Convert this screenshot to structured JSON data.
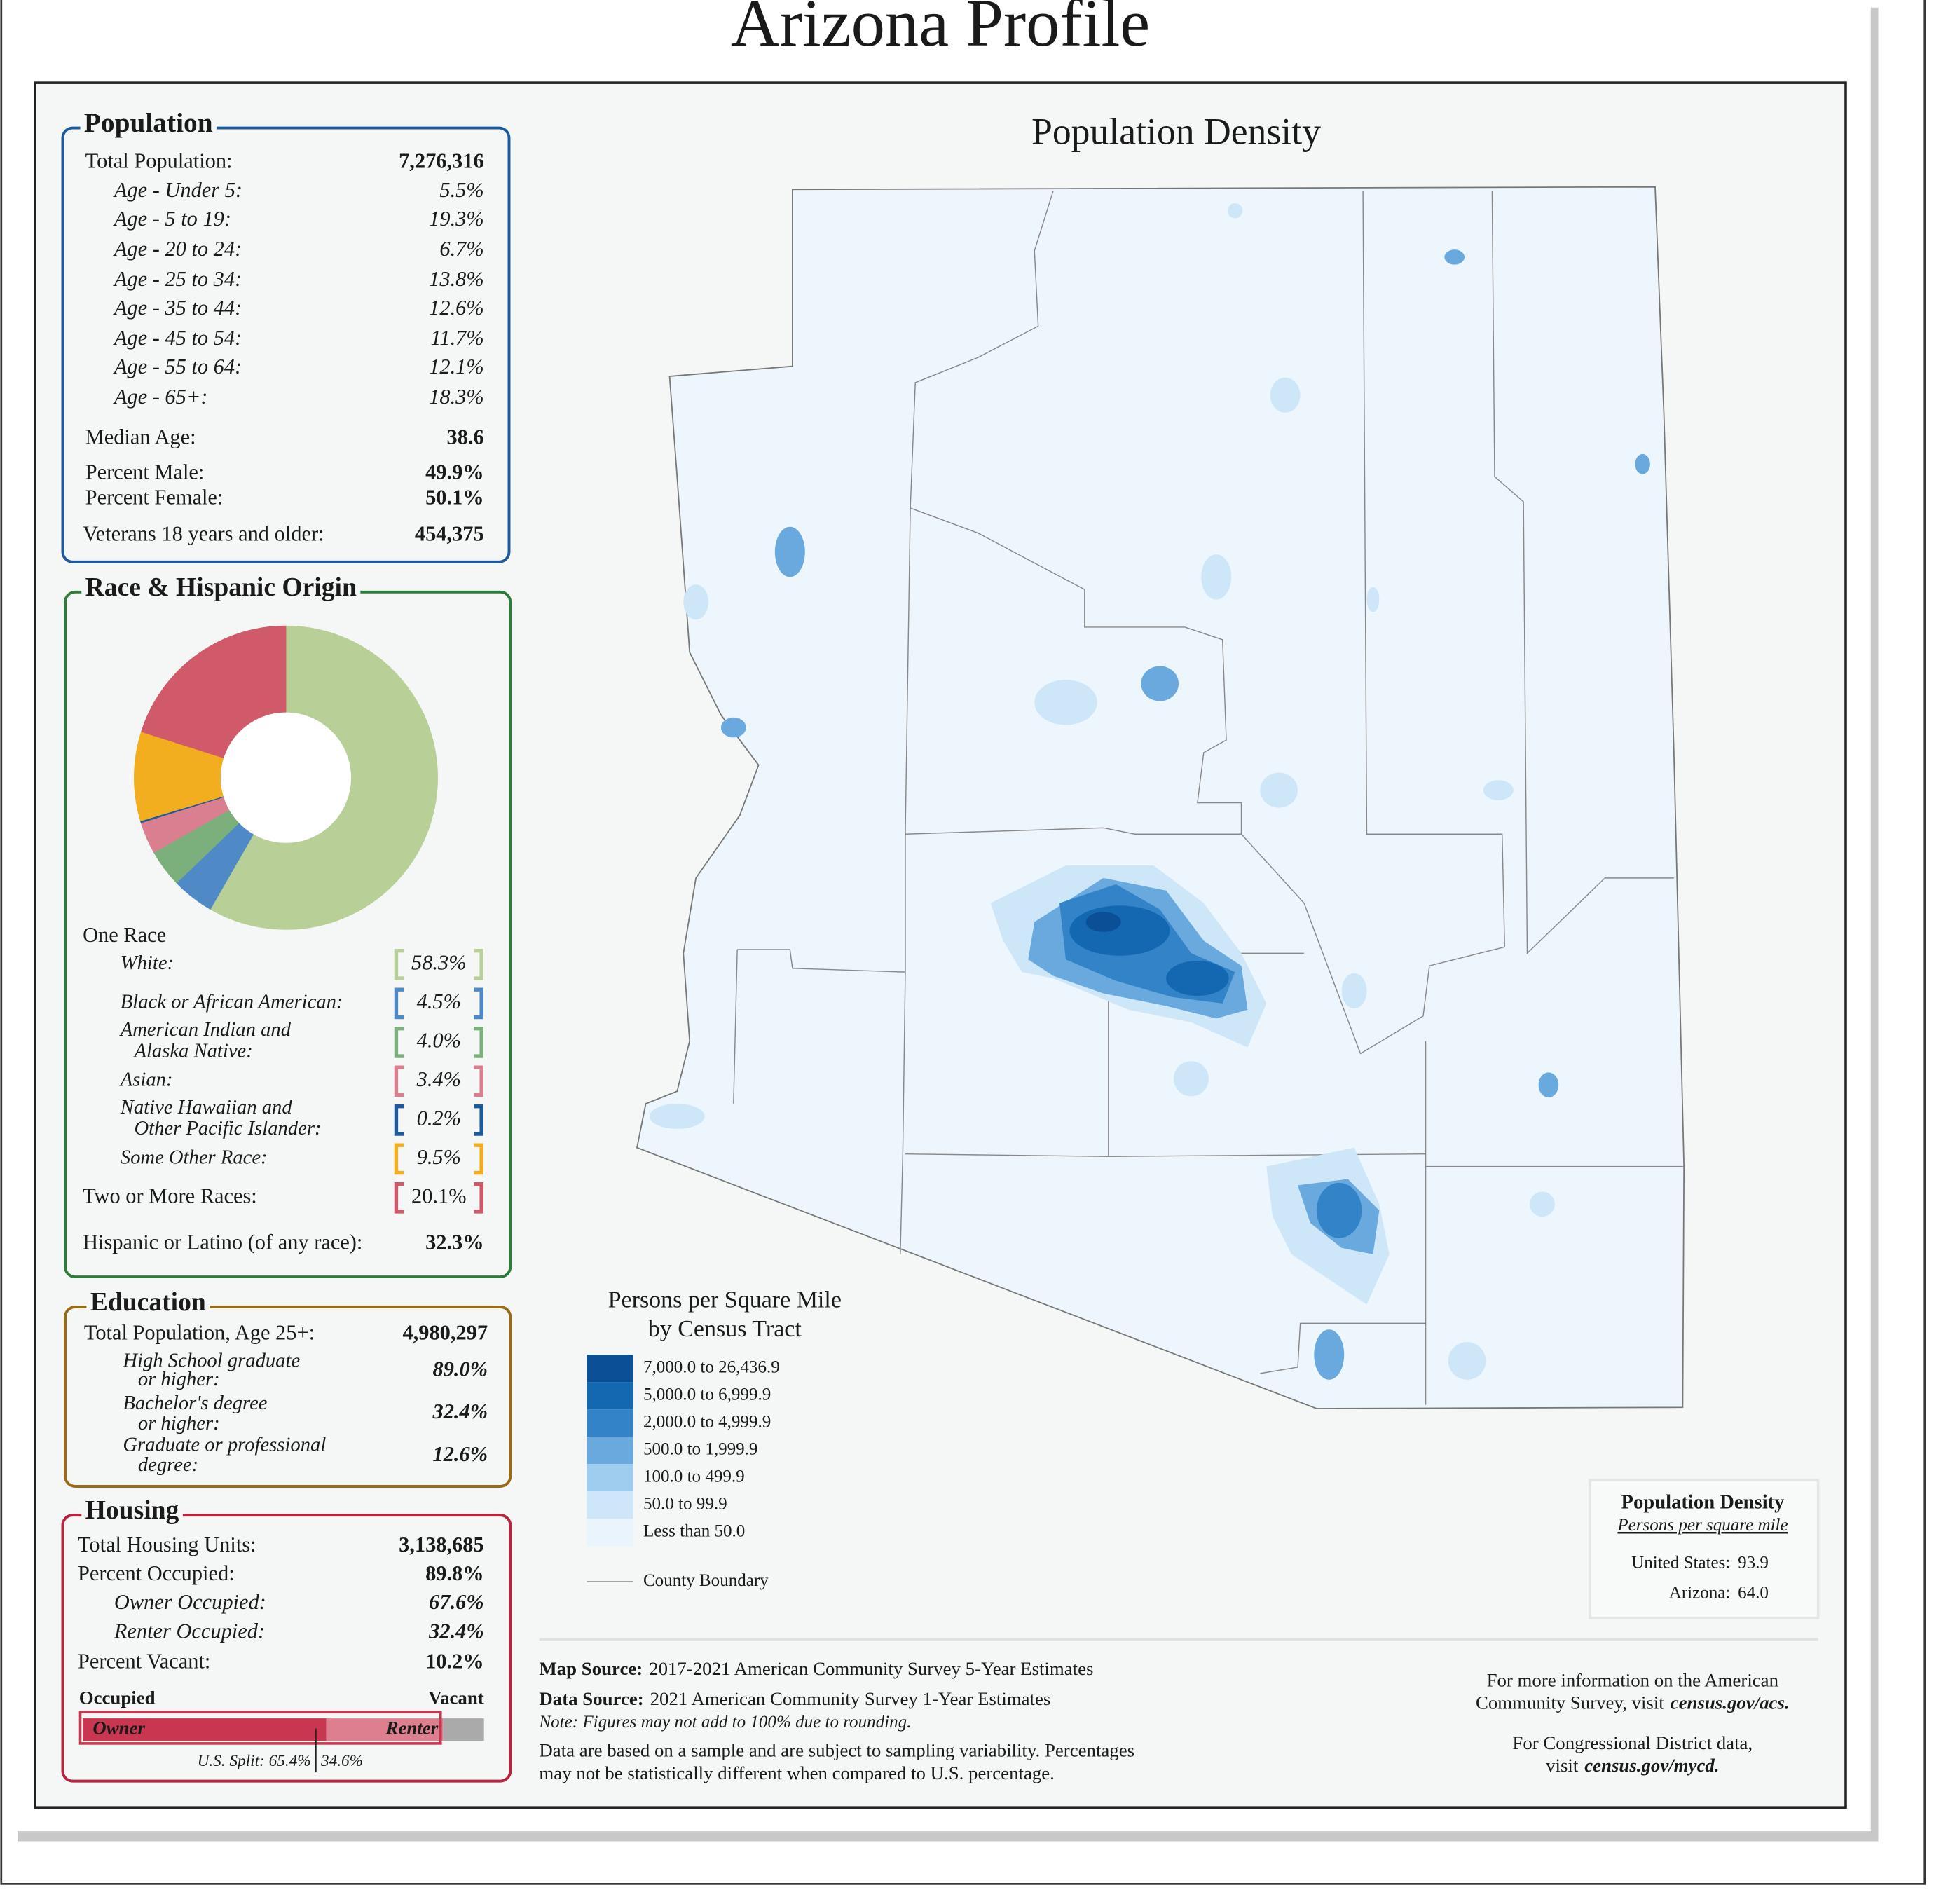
{
  "title": "Arizona Profile",
  "population": {
    "heading": "Population",
    "rows": [
      {
        "label": "Total Population:",
        "value": "7,276,316"
      },
      {
        "label": "Age - Under 5:",
        "value": "5.5%"
      },
      {
        "label": "Age - 5 to 19:",
        "value": "19.3%"
      },
      {
        "label": "Age - 20 to 24:",
        "value": "6.7%"
      },
      {
        "label": "Age - 25 to 34:",
        "value": "13.8%"
      },
      {
        "label": "Age - 35 to 44:",
        "value": "12.6%"
      },
      {
        "label": "Age - 45 to 54:",
        "value": "11.7%"
      },
      {
        "label": "Age - 55 to 64:",
        "value": "12.1%"
      },
      {
        "label": "Age - 65+:",
        "value": "18.3%"
      },
      {
        "label": "Median Age:",
        "value": "38.6"
      },
      {
        "label": "Percent Male:",
        "value": "49.9%"
      },
      {
        "label": "Percent Female:",
        "value": "50.1%"
      },
      {
        "label": "Veterans 18 years and older:",
        "value": "454,375"
      }
    ]
  },
  "race": {
    "heading": "Race & Hispanic Origin",
    "one_race": "One Race",
    "items": [
      {
        "label": [
          "White:"
        ],
        "value": 58.3,
        "value_label": "58.3%",
        "color": "#b9cf98"
      },
      {
        "label": [
          "Black or African American:"
        ],
        "value": 4.5,
        "value_label": "4.5%",
        "color": "#4f8ac6"
      },
      {
        "label": [
          "American Indian and",
          "Alaska Native:"
        ],
        "value": 4.0,
        "value_label": "4.0%",
        "color": "#7bb07c"
      },
      {
        "label": [
          "Asian:"
        ],
        "value": 3.4,
        "value_label": "3.4%",
        "color": "#d97f8f"
      },
      {
        "label": [
          "Native Hawaiian and",
          "Other Pacific Islander:"
        ],
        "value": 0.2,
        "value_label": "0.2%",
        "color": "#1d5a9c"
      },
      {
        "label": [
          "Some Other Race:"
        ],
        "value": 9.5,
        "value_label": "9.5%",
        "color": "#f2ae1f"
      },
      {
        "label": [
          "Two or More Races:"
        ],
        "value": 20.1,
        "value_label": "20.1%",
        "color": "#d05a6a"
      }
    ],
    "hispanic": {
      "label": "Hispanic or Latino (of any race):",
      "value": "32.3%"
    }
  },
  "education": {
    "heading": "Education",
    "rows": [
      {
        "label": [
          "Total Population, Age 25+:"
        ],
        "value": "4,980,297"
      },
      {
        "label": [
          "High School  graduate",
          "or higher:"
        ],
        "value": "89.0%"
      },
      {
        "label": [
          "Bachelor's degree",
          "or higher:"
        ],
        "value": "32.4%"
      },
      {
        "label": [
          "Graduate or professional",
          "degree:"
        ],
        "value": "12.6%"
      }
    ]
  },
  "housing": {
    "heading": "Housing",
    "rows": [
      {
        "label": "Total Housing Units:",
        "value": "3,138,685"
      },
      {
        "label": "Percent Occupied:",
        "value": 89.8,
        "value_label": "89.8%"
      },
      {
        "label": "Owner Occupied:",
        "value": 67.6,
        "value_label": "67.6%"
      },
      {
        "label": "Renter Occupied:",
        "value": 32.4,
        "value_label": "32.4%"
      },
      {
        "label": "Percent Vacant:",
        "value": 10.2,
        "value_label": "10.2%"
      }
    ],
    "bar": {
      "occupied": "Occupied",
      "vacant": "Vacant",
      "owner": "Owner",
      "renter": "Renter"
    },
    "us_split": [
      {
        "value": 65.4,
        "label": "U.S. Split: 65.4%"
      },
      {
        "value": 34.6,
        "label": "34.6%"
      }
    ]
  },
  "map": {
    "title": "Population Density",
    "legend_title": [
      "Persons per Square Mile",
      "by Census Tract"
    ],
    "legend": [
      {
        "label": "7,000.0 to 26,436.9",
        "color": "#0b4f97"
      },
      {
        "label": "5,000.0 to 6,999.9",
        "color": "#1468b2"
      },
      {
        "label": "2,000.0 to 4,999.9",
        "color": "#3383c8"
      },
      {
        "label": "500.0 to 1,999.9",
        "color": "#6aa9de"
      },
      {
        "label": "100.0 to 499.9",
        "color": "#9fcdf0"
      },
      {
        "label": "50.0 to 99.9",
        "color": "#cde6f8"
      },
      {
        "label": "Less than 50.0",
        "color": "#eaf4fc"
      }
    ],
    "county_boundary": "County Boundary"
  },
  "density_box": {
    "title": "Population Density",
    "subtitle": "Persons per square mile",
    "rows": [
      {
        "label": "United States:",
        "value": "93.9"
      },
      {
        "label": "Arizona:",
        "value": "64.0"
      }
    ]
  },
  "sources": {
    "map_source": {
      "label": "Map Source:",
      "text": "2017-2021 American Community Survey 5-Year Estimates"
    },
    "data_source": {
      "label": "Data Source:",
      "text": "2021 American Community Survey 1-Year Estimates"
    },
    "note": "Note: Figures may not add to 100% due to rounding.",
    "disclaimer": [
      "Data are based on a sample and are subject to sampling variability. Percentages",
      "may not be statistically different when compared to U.S. percentage."
    ]
  },
  "more_info": [
    {
      "lines": [
        "For more information on the American",
        "Community Survey, visit"
      ],
      "link": "census.gov/acs."
    },
    {
      "lines": [
        "For Congressional District data,",
        "visit"
      ],
      "link": "census.gov/mycd."
    }
  ]
}
